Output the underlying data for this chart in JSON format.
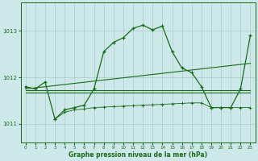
{
  "title": "Graphe pression niveau de la mer (hPa)",
  "background_color": "#cce8e8",
  "grid_color": "#aacccc",
  "line_color": "#1a6b1a",
  "xlim": [
    -0.5,
    23.5
  ],
  "ylim": [
    1010.6,
    1013.6
  ],
  "yticks": [
    1011,
    1012,
    1013
  ],
  "xticks": [
    0,
    1,
    2,
    3,
    4,
    5,
    6,
    7,
    8,
    9,
    10,
    11,
    12,
    13,
    14,
    15,
    16,
    17,
    18,
    19,
    20,
    21,
    22,
    23
  ],
  "s1x": [
    0,
    1,
    2,
    3,
    4,
    5,
    6,
    7,
    8,
    9,
    10,
    11,
    12,
    13,
    14,
    15,
    16,
    17,
    18,
    19,
    20,
    21,
    22,
    23
  ],
  "s1y": [
    1011.8,
    1011.75,
    1011.9,
    1011.1,
    1011.3,
    1011.35,
    1011.4,
    1011.75,
    1012.55,
    1012.75,
    1012.85,
    1013.05,
    1013.12,
    1013.02,
    1013.1,
    1012.55,
    1012.2,
    1012.1,
    1011.8,
    1011.35,
    1011.35,
    1011.35,
    1011.75,
    1012.9
  ],
  "s2x": [
    0,
    23
  ],
  "s2y": [
    1011.75,
    1012.3
  ],
  "s3x": [
    0,
    23
  ],
  "s3y": [
    1011.72,
    1011.72
  ],
  "s4x": [
    0,
    23
  ],
  "s4y": [
    1011.68,
    1011.68
  ],
  "s5x": [
    3,
    4,
    5,
    6,
    7,
    8,
    9,
    10,
    11,
    12,
    13,
    14,
    15,
    16,
    17,
    18,
    19,
    20,
    21,
    22,
    23
  ],
  "s5y": [
    1011.1,
    1011.25,
    1011.3,
    1011.32,
    1011.35,
    1011.36,
    1011.37,
    1011.38,
    1011.39,
    1011.4,
    1011.41,
    1011.42,
    1011.43,
    1011.44,
    1011.45,
    1011.45,
    1011.35,
    1011.35,
    1011.35,
    1011.35,
    1011.35
  ]
}
